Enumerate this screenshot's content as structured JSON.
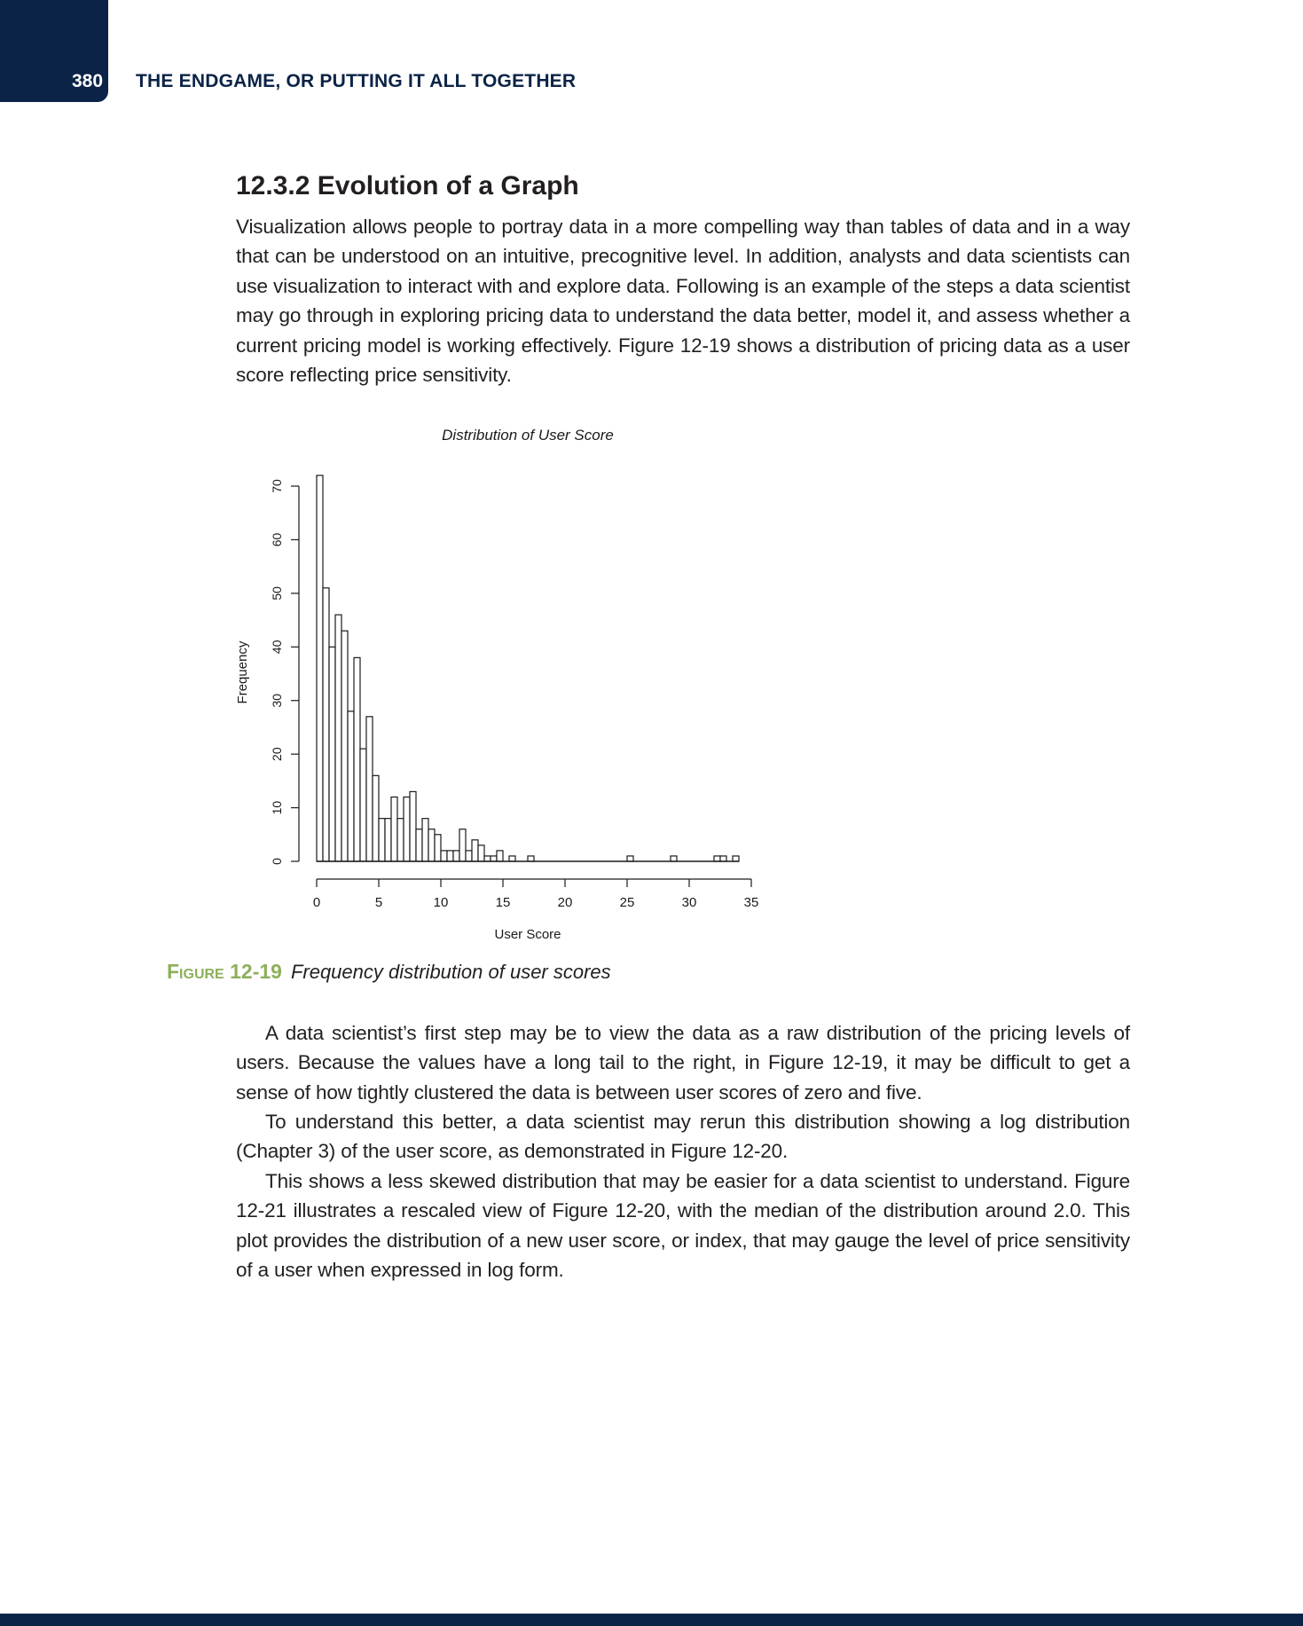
{
  "header": {
    "page_number": "380",
    "running_head": "THE ENDGAME, OR PUTTING IT ALL TOGETHER"
  },
  "section": {
    "title": "12.3.2 Evolution of a Graph",
    "intro": "Visualization allows people to portray data in a more compelling way than tables of data and in a way that can be understood on an intuitive, precognitive level. In addition, analysts and data scientists can use visualization to interact with and explore data. Following is an example of the steps a data scientist may go through in exploring pricing data to understand the data better, model it, and assess whether a cur­rent pricing model is working effectively. Figure 12-19 shows a distribution of pricing data as a user score reflecting price sensitivity."
  },
  "figure": {
    "label": "Figure 12-19",
    "caption": "Frequency distribution of user scores"
  },
  "chart_data": {
    "type": "bar",
    "title": "Distribution of User Score",
    "xlabel": "User Score",
    "ylabel": "Frequency",
    "xlim": [
      0,
      35
    ],
    "ylim": [
      0,
      70
    ],
    "x_ticks": [
      0,
      5,
      10,
      15,
      20,
      25,
      30,
      35
    ],
    "y_ticks": [
      0,
      10,
      20,
      30,
      40,
      50,
      60,
      70
    ],
    "bin_width": 0.5,
    "bin_starts": [
      0,
      0.5,
      1,
      1.5,
      2,
      2.5,
      3,
      3.5,
      4,
      4.5,
      5,
      5.5,
      6,
      6.5,
      7,
      7.5,
      8,
      8.5,
      9,
      9.5,
      10,
      10.5,
      11,
      11.5,
      12,
      12.5,
      13,
      13.5,
      14,
      14.5,
      15,
      15.5,
      16,
      16.5,
      17,
      17.5,
      18,
      18.5,
      19,
      19.5,
      20,
      20.5,
      21,
      21.5,
      22,
      22.5,
      23,
      23.5,
      24,
      24.5,
      25,
      25.5,
      26,
      26.5,
      27,
      27.5,
      28,
      28.5,
      29,
      29.5,
      30,
      30.5,
      31,
      31.5,
      32,
      32.5,
      33,
      33.5
    ],
    "values": [
      72,
      51,
      40,
      46,
      43,
      28,
      38,
      21,
      27,
      16,
      8,
      8,
      12,
      8,
      12,
      13,
      6,
      8,
      6,
      5,
      2,
      2,
      2,
      6,
      2,
      4,
      3,
      1,
      1,
      2,
      0,
      1,
      0,
      0,
      1,
      0,
      0,
      0,
      0,
      0,
      0,
      0,
      0,
      0,
      0,
      0,
      0,
      0,
      0,
      0,
      1,
      0,
      0,
      0,
      0,
      0,
      0,
      1,
      0,
      0,
      0,
      0,
      0,
      0,
      1,
      1,
      0,
      1
    ],
    "grid": false,
    "legend": "none"
  },
  "body": {
    "para1": "A data scientist’s first step may be to view the data as a raw distribution of the pricing levels of users. Because the values have a long tail to the right, in Figure 12-19, it may be difficult to get a sense of how tightly clustered the data is between user scores of zero and five.",
    "para2": "To understand this better, a data scientist may rerun this distribution showing a log distribution (Chapter 3) of the user score, as demonstrated in Figure 12-20.",
    "para3": "This shows a less skewed distribution that may be easier for a data scientist to understand. Figure 12-21 illustrates a rescaled view of Figure 12-20, with the median of the distribution around 2.0. This plot provides the distribution of a new user score, or index, that may gauge the level of price sensitivity of a user when expressed in log form."
  }
}
